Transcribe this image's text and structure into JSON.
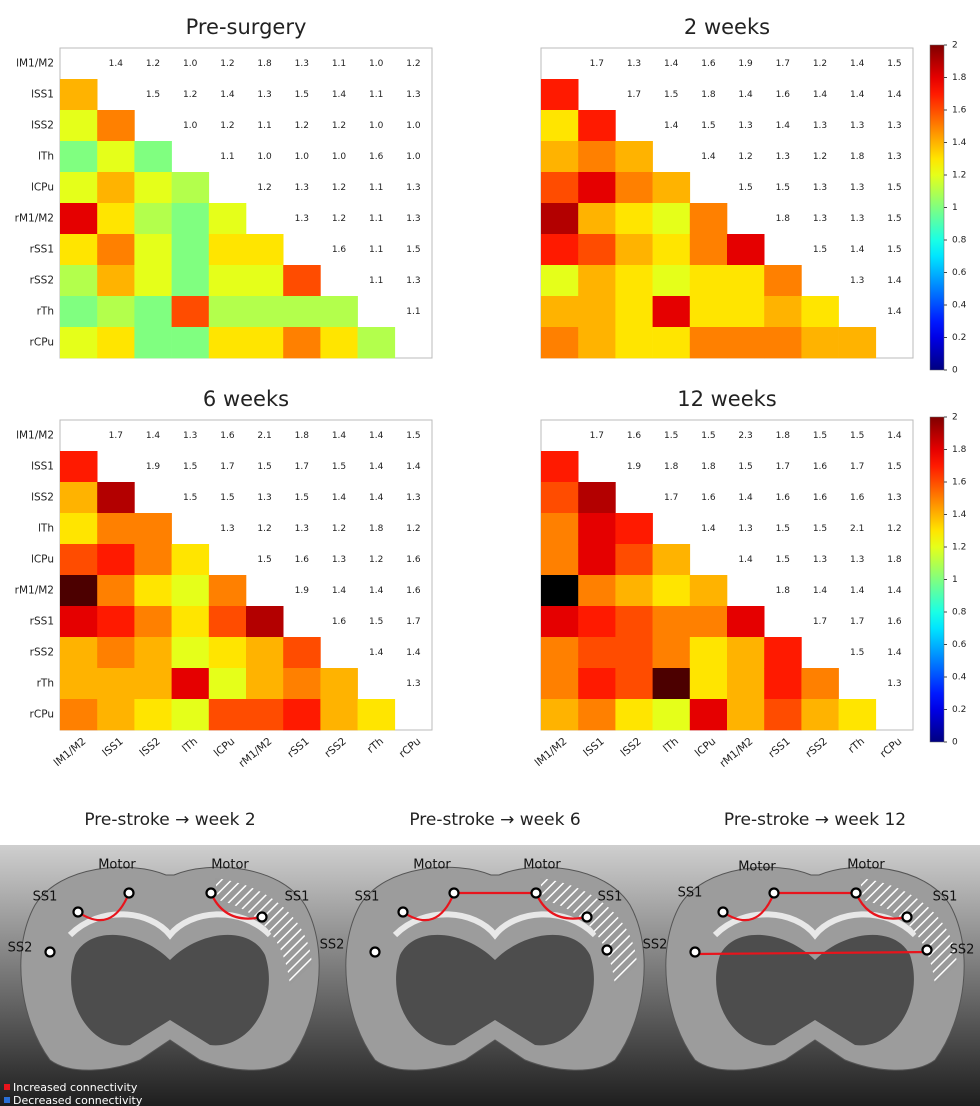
{
  "chart_data": [
    {
      "type": "heatmap",
      "title": "Pre-surgery",
      "row_labels": [
        "lM1/M2",
        "lSS1",
        "lSS2",
        "lTh",
        "lCPu",
        "rM1/M2",
        "rSS1",
        "rSS2",
        "rTh",
        "rCPu"
      ],
      "values": [
        [
          1.4,
          1.2,
          1.0,
          1.2,
          1.8,
          1.3,
          1.1,
          1.0,
          1.2
        ],
        [
          1.5,
          1.2,
          1.4,
          1.3,
          1.5,
          1.4,
          1.1,
          1.3
        ],
        [
          1.0,
          1.2,
          1.1,
          1.2,
          1.2,
          1.0,
          1.0
        ],
        [
          1.1,
          1.0,
          1.0,
          1.0,
          1.6,
          1.0
        ],
        [
          1.2,
          1.3,
          1.2,
          1.1,
          1.3
        ],
        [
          1.3,
          1.2,
          1.1,
          1.3
        ],
        [
          1.6,
          1.1,
          1.5
        ],
        [
          1.1,
          1.3
        ],
        [
          1.1
        ]
      ],
      "value_labels": [
        [
          "1.4",
          "1.2",
          "1.0",
          "1.2",
          "1.8",
          "1.3",
          "1.1",
          "1.0",
          "1.2"
        ],
        [
          "1.5",
          "1.2",
          "1.4",
          "1.3",
          "1.5",
          "1.4",
          "1.1",
          "1.3"
        ],
        [
          "1.0",
          "1.2",
          "1.1",
          "1.2",
          "1.2",
          "1.0",
          "1.0"
        ],
        [
          "1.1",
          "1.0",
          "1.0",
          "1.0",
          "1.6",
          "1.0"
        ],
        [
          "1.2",
          "1.3",
          "1.2",
          "1.1",
          "1.3"
        ],
        [
          "1.3",
          "1.2",
          "1.1",
          "1.3"
        ],
        [
          "1.6",
          "1.1",
          "1.5"
        ],
        [
          "1.1",
          "1.3"
        ],
        [
          "1.1"
        ]
      ],
      "clim": [
        0,
        2
      ]
    },
    {
      "type": "heatmap",
      "title": "2 weeks",
      "values": [
        [
          1.7,
          1.3,
          1.4,
          1.6,
          1.9,
          1.7,
          1.2,
          1.4,
          1.5
        ],
        [
          1.7,
          1.5,
          1.8,
          1.4,
          1.6,
          1.4,
          1.4,
          1.4
        ],
        [
          1.4,
          1.5,
          1.3,
          1.4,
          1.3,
          1.3,
          1.3
        ],
        [
          1.4,
          1.2,
          1.3,
          1.2,
          1.8,
          1.3
        ],
        [
          1.5,
          1.5,
          1.3,
          1.3,
          1.5
        ],
        [
          1.8,
          1.3,
          1.3,
          1.5
        ],
        [
          1.5,
          1.4,
          1.5
        ],
        [
          1.3,
          1.4
        ],
        [
          1.4
        ]
      ],
      "clim": [
        0,
        2
      ],
      "colorbar_ticks": [
        0,
        0.2,
        0.4,
        0.6,
        0.8,
        1,
        1.2,
        1.4,
        1.6,
        1.8,
        2
      ]
    },
    {
      "type": "heatmap",
      "title": "6 weeks",
      "row_labels": [
        "lM1/M2",
        "lSS1",
        "lSS2",
        "lTh",
        "lCPu",
        "rM1/M2",
        "rSS1",
        "rSS2",
        "rTh",
        "rCPu"
      ],
      "col_labels": [
        "lM1/M2",
        "lSS1",
        "lSS2",
        "lTh",
        "lCPu",
        "rM1/M2",
        "rSS1",
        "rSS2",
        "rTh",
        "rCPu"
      ],
      "values": [
        [
          1.7,
          1.4,
          1.3,
          1.6,
          2.1,
          1.8,
          1.4,
          1.4,
          1.5
        ],
        [
          1.9,
          1.5,
          1.7,
          1.5,
          1.7,
          1.5,
          1.4,
          1.4
        ],
        [
          1.5,
          1.5,
          1.3,
          1.5,
          1.4,
          1.4,
          1.3
        ],
        [
          1.3,
          1.2,
          1.3,
          1.2,
          1.8,
          1.2
        ],
        [
          1.5,
          1.6,
          1.3,
          1.2,
          1.6
        ],
        [
          1.9,
          1.4,
          1.4,
          1.6
        ],
        [
          1.6,
          1.5,
          1.7
        ],
        [
          1.4,
          1.4
        ],
        [
          1.3
        ]
      ],
      "clim": [
        0,
        2
      ]
    },
    {
      "type": "heatmap",
      "title": "12 weeks",
      "col_labels": [
        "lM1/M2",
        "lSS1",
        "lSS2",
        "lTh",
        "lCPu",
        "rM1/M2",
        "rSS1",
        "rSS2",
        "rTh",
        "rCPu"
      ],
      "values": [
        [
          1.7,
          1.6,
          1.5,
          1.5,
          2.3,
          1.8,
          1.5,
          1.5,
          1.4
        ],
        [
          1.9,
          1.8,
          1.8,
          1.5,
          1.7,
          1.6,
          1.7,
          1.5
        ],
        [
          1.7,
          1.6,
          1.4,
          1.6,
          1.6,
          1.6,
          1.3
        ],
        [
          1.4,
          1.3,
          1.5,
          1.5,
          2.1,
          1.2
        ],
        [
          1.4,
          1.5,
          1.3,
          1.3,
          1.8
        ],
        [
          1.8,
          1.4,
          1.4,
          1.4
        ],
        [
          1.7,
          1.7,
          1.6
        ],
        [
          1.5,
          1.4
        ],
        [
          1.3
        ]
      ],
      "clim": [
        0,
        2
      ],
      "colorbar_ticks": [
        0,
        0.2,
        0.4,
        0.6,
        0.8,
        1,
        1.2,
        1.4,
        1.6,
        1.8,
        2
      ]
    }
  ],
  "diagram": {
    "panels": [
      {
        "title": "Pre-stroke → week 2",
        "labels": [
          "Motor",
          "Motor",
          "SS1",
          "SS1",
          "SS2"
        ]
      },
      {
        "title": "Pre-stroke → week 6",
        "labels": [
          "Motor",
          "Motor",
          "SS1",
          "SS1",
          "SS2"
        ]
      },
      {
        "title": "Pre-stroke → week 12",
        "labels": [
          "Motor",
          "Motor",
          "SS1",
          "SS1",
          "SS2",
          "SS2"
        ]
      }
    ],
    "legend": [
      "Increased connectivity",
      "Decreased connectivity"
    ]
  }
}
